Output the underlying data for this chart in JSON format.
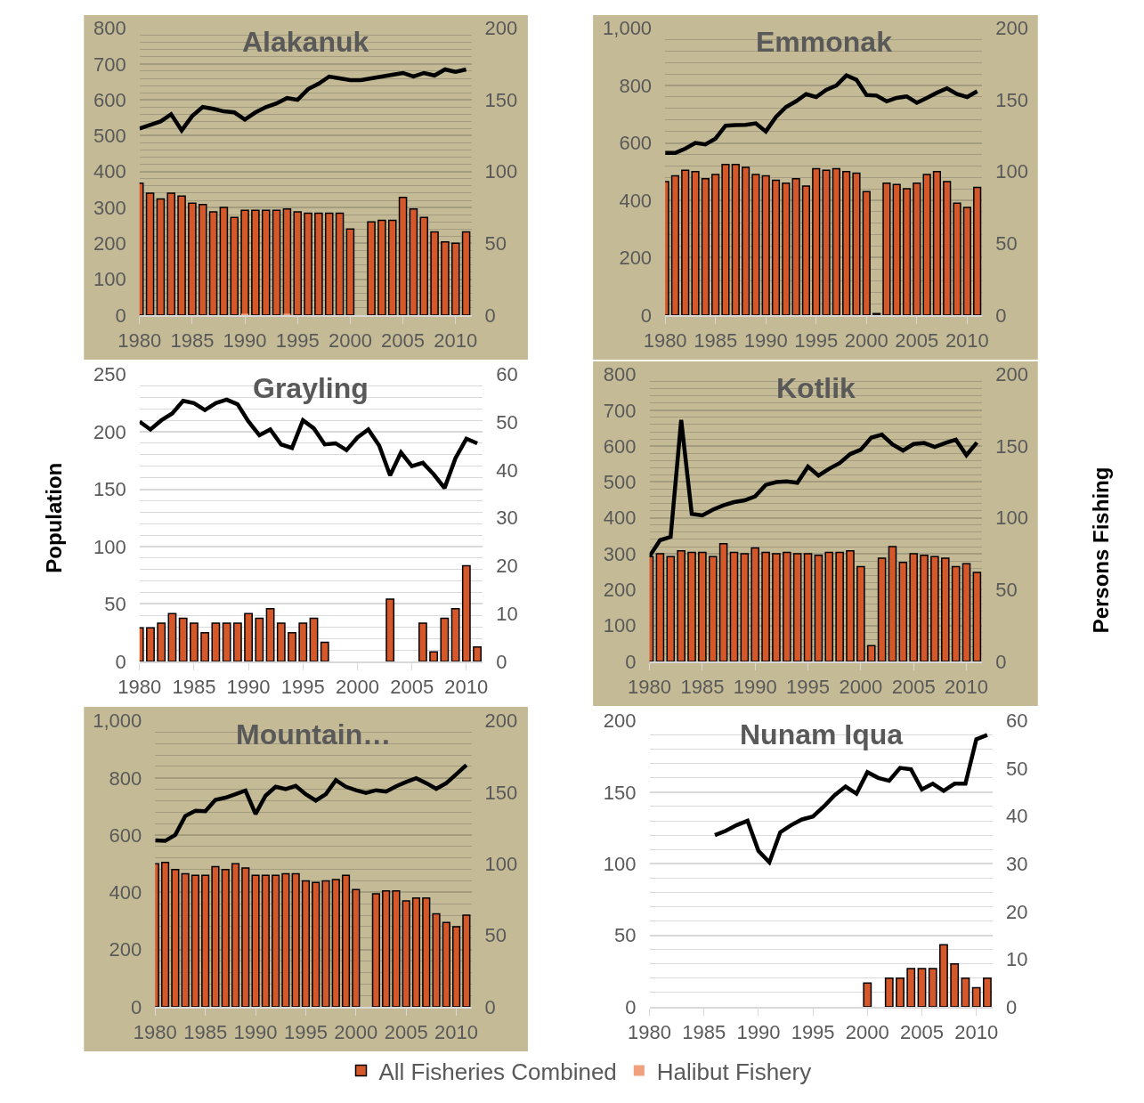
{
  "chart_data": [
    {
      "type": "bar",
      "title": "Alakanuk",
      "x": [
        1980,
        1981,
        1982,
        1983,
        1984,
        1985,
        1986,
        1987,
        1988,
        1989,
        1990,
        1991,
        1992,
        1993,
        1994,
        1995,
        1996,
        1997,
        1998,
        1999,
        2000,
        2001,
        2002,
        2003,
        2004,
        2005,
        2006,
        2007,
        2008,
        2009,
        2010,
        2011
      ],
      "xlim": [
        1980,
        2011.5
      ],
      "xticks": [
        1980,
        1985,
        1990,
        1995,
        2000,
        2005,
        2010
      ],
      "ylim": [
        0,
        800
      ],
      "yticks": [
        0,
        100,
        200,
        300,
        400,
        500,
        600,
        700,
        800
      ],
      "y2lim": [
        0,
        200
      ],
      "y2ticks": [
        0,
        50,
        100,
        150,
        200
      ],
      "grid": "y",
      "legend": "bottom",
      "series": [
        {
          "type": "line",
          "color": "#000000",
          "values": [
            520,
            530,
            540,
            560,
            515,
            555,
            580,
            575,
            568,
            565,
            545,
            565,
            580,
            590,
            605,
            600,
            630,
            645,
            665,
            660,
            655,
            655,
            660,
            665,
            670,
            675,
            665,
            675,
            668,
            685,
            678,
            685
          ]
        },
        {
          "axis": "y2",
          "name": "All Fisheries Combined",
          "color": "#d4582a",
          "values": [
            92,
            85,
            81,
            85,
            83,
            78,
            77,
            72,
            75,
            68,
            73,
            73,
            73,
            73,
            74,
            72,
            71,
            71,
            71,
            71,
            60,
            null,
            65,
            66,
            66,
            82,
            74,
            68,
            58,
            51,
            50,
            58
          ]
        },
        {
          "axis": "y2",
          "name": "Halibut Fishery",
          "color": "#f0a07c",
          "values": [
            null,
            null,
            null,
            null,
            null,
            null,
            null,
            null,
            null,
            null,
            1,
            null,
            null,
            null,
            1,
            null,
            null,
            null,
            null,
            null,
            null,
            null,
            null,
            null,
            null,
            null,
            null,
            null,
            null,
            null,
            null,
            null
          ]
        }
      ]
    },
    {
      "type": "bar",
      "title": "Emmonak",
      "x": [
        1980,
        1981,
        1982,
        1983,
        1984,
        1985,
        1986,
        1987,
        1988,
        1989,
        1990,
        1991,
        1992,
        1993,
        1994,
        1995,
        1996,
        1997,
        1998,
        1999,
        2000,
        2001,
        2002,
        2003,
        2004,
        2005,
        2006,
        2007,
        2008,
        2009,
        2010,
        2011
      ],
      "xlim": [
        1980,
        2011.5
      ],
      "xticks": [
        1980,
        1985,
        1990,
        1995,
        2000,
        2005,
        2010
      ],
      "ylim": [
        0,
        1000
      ],
      "yticks": [
        0,
        200,
        400,
        600,
        800,
        {
          "value": 1000,
          "label": "1,000"
        }
      ],
      "y2lim": [
        0,
        200
      ],
      "y2ticks": [
        0,
        50,
        100,
        150,
        200
      ],
      "grid": "y",
      "legend": "bottom",
      "series": [
        {
          "type": "line",
          "color": "#000000",
          "values": [
            565,
            565,
            580,
            600,
            595,
            615,
            660,
            662,
            663,
            668,
            640,
            690,
            725,
            745,
            770,
            760,
            785,
            800,
            835,
            820,
            767,
            765,
            745,
            757,
            762,
            740,
            757,
            775,
            790,
            770,
            760,
            780
          ]
        },
        {
          "axis": "y2",
          "name": "All Fisheries Combined",
          "color": "#d4582a",
          "values": [
            93,
            97,
            101,
            100,
            95,
            98,
            105,
            105,
            103,
            98,
            97,
            94,
            92,
            95,
            90,
            102,
            101,
            102,
            100,
            99,
            86,
            1,
            92,
            91,
            88,
            92,
            98,
            100,
            93,
            78,
            75,
            89
          ]
        }
      ]
    },
    {
      "type": "bar",
      "title": "Grayling",
      "ylabel": "Population",
      "x": [
        1980,
        1981,
        1982,
        1983,
        1984,
        1985,
        1986,
        1987,
        1988,
        1989,
        1990,
        1991,
        1992,
        1993,
        1994,
        1995,
        1996,
        1997,
        1998,
        1999,
        2000,
        2001,
        2002,
        2003,
        2004,
        2005,
        2006,
        2007,
        2008,
        2009,
        2010,
        2011
      ],
      "xlim": [
        1980,
        2011.5
      ],
      "xticks": [
        1980,
        1985,
        1990,
        1995,
        2000,
        2005,
        2010
      ],
      "ylim": [
        0,
        250
      ],
      "yticks": [
        0,
        50,
        100,
        150,
        200,
        250
      ],
      "y2lim": [
        0,
        60
      ],
      "y2ticks": [
        0,
        10,
        20,
        30,
        40,
        50,
        60
      ],
      "grid": "y",
      "legend": "bottom",
      "series": [
        {
          "type": "line",
          "color": "#000000",
          "values": [
            209,
            202,
            210,
            216,
            227,
            225,
            219,
            225,
            228,
            224,
            209,
            197,
            202,
            189,
            186,
            210,
            203,
            189,
            190,
            184,
            195,
            202,
            188,
            162,
            182,
            170,
            173,
            163,
            151,
            177,
            194,
            190
          ]
        },
        {
          "axis": "y2",
          "name": "All Fisheries Combined",
          "color": "#d4582a",
          "values": [
            7,
            7,
            8,
            10,
            9,
            8,
            6,
            8,
            8,
            8,
            10,
            9,
            11,
            8,
            6,
            8,
            9,
            4,
            null,
            null,
            null,
            null,
            null,
            13,
            null,
            null,
            8,
            2,
            9,
            11,
            20,
            3
          ]
        }
      ]
    },
    {
      "type": "bar",
      "title": "Kotlik",
      "y2label": "Persons Fishing",
      "x": [
        1980,
        1981,
        1982,
        1983,
        1984,
        1985,
        1986,
        1987,
        1988,
        1989,
        1990,
        1991,
        1992,
        1993,
        1994,
        1995,
        1996,
        1997,
        1998,
        1999,
        2000,
        2001,
        2002,
        2003,
        2004,
        2005,
        2006,
        2007,
        2008,
        2009,
        2010,
        2011
      ],
      "xlim": [
        1980,
        2011.5
      ],
      "xticks": [
        1980,
        1985,
        1990,
        1995,
        2000,
        2005,
        2010
      ],
      "ylim": [
        0,
        800
      ],
      "yticks": [
        0,
        100,
        200,
        300,
        400,
        500,
        600,
        700,
        800
      ],
      "y2lim": [
        0,
        200
      ],
      "y2ticks": [
        0,
        50,
        100,
        150,
        200
      ],
      "grid": "y",
      "legend": "bottom",
      "series": [
        {
          "type": "line",
          "color": "#000000",
          "values": [
            293,
            338,
            347,
            673,
            411,
            407,
            423,
            435,
            444,
            449,
            460,
            492,
            500,
            502,
            498,
            543,
            518,
            537,
            553,
            578,
            590,
            624,
            632,
            605,
            588,
            606,
            609,
            598,
            609,
            618,
            575,
            610
          ]
        },
        {
          "axis": "y2",
          "name": "All Fisheries Combined",
          "color": "#d4582a",
          "values": [
            73,
            75,
            73,
            77,
            76,
            76,
            73,
            82,
            76,
            75,
            79,
            76,
            75,
            76,
            75,
            75,
            74,
            76,
            76,
            77,
            66,
            11,
            72,
            80,
            69,
            75,
            74,
            73,
            72,
            66,
            68,
            62
          ]
        }
      ]
    },
    {
      "type": "bar",
      "title": "Mountain…",
      "x": [
        1980,
        1981,
        1982,
        1983,
        1984,
        1985,
        1986,
        1987,
        1988,
        1989,
        1990,
        1991,
        1992,
        1993,
        1994,
        1995,
        1996,
        1997,
        1998,
        1999,
        2000,
        2001,
        2002,
        2003,
        2004,
        2005,
        2006,
        2007,
        2008,
        2009,
        2010,
        2011
      ],
      "xlim": [
        1980,
        2011.5
      ],
      "xticks": [
        1980,
        1985,
        1990,
        1995,
        2000,
        2005,
        2010
      ],
      "ylim": [
        0,
        1000
      ],
      "yticks": [
        0,
        200,
        400,
        600,
        800,
        {
          "value": 1000,
          "label": "1,000"
        }
      ],
      "y2lim": [
        0,
        200
      ],
      "y2ticks": [
        0,
        50,
        100,
        150,
        200
      ],
      "grid": "y",
      "legend": "bottom",
      "series": [
        {
          "type": "line",
          "color": "#000000",
          "values": [
            582,
            580,
            601,
            667,
            685,
            684,
            723,
            731,
            743,
            756,
            674,
            738,
            769,
            761,
            772,
            743,
            721,
            743,
            792,
            769,
            757,
            748,
            757,
            752,
            771,
            786,
            799,
            782,
            762,
            782,
            813,
            845
          ]
        },
        {
          "axis": "y2",
          "name": "All Fisheries Combined",
          "color": "#d4582a",
          "values": [
            100,
            101,
            96,
            93,
            92,
            92,
            98,
            96,
            100,
            97,
            92,
            92,
            92,
            93,
            93,
            88,
            87,
            88,
            89,
            92,
            82,
            null,
            79,
            81,
            81,
            74,
            76,
            76,
            65,
            59,
            56,
            64
          ]
        }
      ]
    },
    {
      "type": "bar",
      "title": "Nunam Iqua",
      "x": [
        1986,
        1987,
        1988,
        1989,
        1990,
        1991,
        1992,
        1993,
        1994,
        1995,
        1996,
        1997,
        1998,
        1999,
        2000,
        2001,
        2002,
        2003,
        2004,
        2005,
        2006,
        2007,
        2008,
        2009,
        2010,
        2011
      ],
      "xlim": [
        1980,
        2011.5
      ],
      "xticks": [
        1980,
        1985,
        1990,
        1995,
        2000,
        2005,
        2010
      ],
      "ylim": [
        0,
        200
      ],
      "yticks": [
        0,
        50,
        100,
        150,
        200
      ],
      "y2lim": [
        0,
        60
      ],
      "y2ticks": [
        0,
        10,
        20,
        30,
        40,
        50,
        60
      ],
      "grid": "y",
      "legend": "bottom",
      "series": [
        {
          "type": "line",
          "color": "#000000",
          "values": [
            120,
            123,
            127,
            130,
            109,
            101,
            122,
            127,
            131,
            133,
            140,
            148,
            154,
            149,
            164,
            160,
            158,
            167,
            166,
            152,
            156,
            151,
            156,
            156,
            187,
            190
          ]
        },
        {
          "axis": "y2",
          "name": "All Fisheries Combined",
          "color": "#d4582a",
          "values": [
            null,
            null,
            null,
            null,
            null,
            null,
            null,
            null,
            null,
            null,
            null,
            null,
            null,
            null,
            5,
            null,
            6,
            6,
            8,
            8,
            8,
            13,
            9,
            6,
            4,
            6
          ]
        }
      ]
    }
  ]
}
